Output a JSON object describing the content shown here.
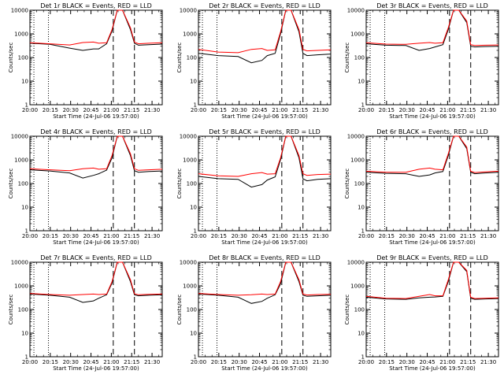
{
  "colors": {
    "events": "#000000",
    "lld": "#ff0000",
    "background": "#ffffff",
    "axes": "#000000"
  },
  "chart_data": [
    {
      "type": "line",
      "title": "Det 1r BLACK = Events, RED = LLD",
      "xlabel": "Start Time (24-Jul-06 19:57:00)",
      "ylabel": "Counts/sec",
      "yscale": "log",
      "ylim": [
        1,
        10000
      ],
      "xlim": [
        0,
        100
      ],
      "x_tick_labels": [
        "20:00",
        "20:15",
        "20:30",
        "20:45",
        "21:00",
        "21:15",
        "21:30"
      ],
      "y_tick_labels": [
        "1",
        "10",
        "100",
        "1000",
        "10000"
      ],
      "dotted_lines": [
        3,
        14
      ],
      "dashed_lines": [
        63,
        79
      ],
      "series": [
        {
          "name": "Events",
          "x": [
            0,
            15,
            30,
            40,
            48,
            52,
            58,
            62,
            66,
            70,
            76,
            79,
            82,
            90,
            100
          ],
          "y": [
            400,
            360,
            250,
            200,
            230,
            230,
            380,
            1300,
            10000,
            10000,
            1500,
            400,
            330,
            350,
            370
          ]
        },
        {
          "name": "LLD",
          "x": [
            0,
            15,
            30,
            40,
            48,
            52,
            58,
            62,
            66,
            70,
            76,
            79,
            82,
            90,
            100
          ],
          "y": [
            420,
            380,
            340,
            430,
            450,
            400,
            420,
            1500,
            10000,
            10000,
            1800,
            450,
            380,
            400,
            420
          ]
        }
      ]
    },
    {
      "type": "line",
      "title": "Det 2r BLACK = Events, RED = LLD",
      "xlabel": "Start Time (24-Jul-06 19:57:00)",
      "ylabel": "Counts/sec",
      "yscale": "log",
      "ylim": [
        1,
        10000
      ],
      "xlim": [
        0,
        100
      ],
      "x_tick_labels": [
        "20:00",
        "20:15",
        "20:30",
        "20:45",
        "21:00",
        "21:15",
        "21:30"
      ],
      "y_tick_labels": [
        "1",
        "10",
        "100",
        "1000",
        "10000"
      ],
      "dotted_lines": [
        3,
        14
      ],
      "dashed_lines": [
        63,
        79
      ],
      "series": [
        {
          "name": "Events",
          "x": [
            0,
            15,
            30,
            40,
            48,
            52,
            58,
            62,
            66,
            70,
            76,
            79,
            82,
            90,
            100
          ],
          "y": [
            150,
            120,
            110,
            60,
            75,
            120,
            150,
            1000,
            10000,
            10000,
            1200,
            150,
            120,
            130,
            140
          ]
        },
        {
          "name": "LLD",
          "x": [
            0,
            15,
            30,
            40,
            48,
            52,
            58,
            62,
            66,
            70,
            76,
            79,
            82,
            90,
            100
          ],
          "y": [
            220,
            170,
            160,
            220,
            240,
            200,
            210,
            1200,
            10000,
            10000,
            1500,
            220,
            190,
            200,
            210
          ]
        }
      ]
    },
    {
      "type": "line",
      "title": "Det 3r BLACK = Events, RED = LLD",
      "xlabel": "Start Time (24-Jul-06 19:57:00)",
      "ylabel": "Counts/sec",
      "yscale": "log",
      "ylim": [
        1,
        10000
      ],
      "xlim": [
        0,
        100
      ],
      "x_tick_labels": [
        "20:00",
        "20:15",
        "20:30",
        "20:45",
        "21:00",
        "21:15",
        "21:30"
      ],
      "y_tick_labels": [
        "1",
        "10",
        "100",
        "1000",
        "10000"
      ],
      "dotted_lines": [
        3,
        14
      ],
      "dashed_lines": [
        63,
        79
      ],
      "series": [
        {
          "name": "Events",
          "x": [
            0,
            15,
            30,
            40,
            48,
            52,
            58,
            62,
            66,
            70,
            76,
            79,
            82,
            90,
            100
          ],
          "y": [
            380,
            330,
            320,
            200,
            240,
            280,
            350,
            1500,
            10000,
            10000,
            3000,
            300,
            280,
            290,
            300
          ]
        },
        {
          "name": "LLD",
          "x": [
            0,
            15,
            30,
            40,
            48,
            52,
            58,
            62,
            66,
            70,
            76,
            79,
            82,
            90,
            100
          ],
          "y": [
            420,
            370,
            360,
            400,
            430,
            400,
            420,
            1800,
            10000,
            10000,
            3500,
            350,
            320,
            330,
            340
          ]
        }
      ]
    },
    {
      "type": "line",
      "title": "Det 4r BLACK = Events, RED = LLD",
      "xlabel": "Start Time (24-Jul-06 19:57:00)",
      "ylabel": "Counts/sec",
      "yscale": "log",
      "ylim": [
        1,
        10000
      ],
      "xlim": [
        0,
        100
      ],
      "x_tick_labels": [
        "20:00",
        "20:15",
        "20:30",
        "20:45",
        "21:00",
        "21:15",
        "21:30"
      ],
      "y_tick_labels": [
        "1",
        "10",
        "100",
        "1000",
        "10000"
      ],
      "dotted_lines": [
        3,
        14
      ],
      "dashed_lines": [
        63,
        79
      ],
      "series": [
        {
          "name": "Events",
          "x": [
            0,
            15,
            30,
            40,
            48,
            52,
            58,
            62,
            66,
            70,
            76,
            79,
            82,
            90,
            100
          ],
          "y": [
            380,
            340,
            280,
            170,
            220,
            260,
            370,
            1200,
            10000,
            10000,
            1500,
            350,
            300,
            320,
            340
          ]
        },
        {
          "name": "LLD",
          "x": [
            0,
            15,
            30,
            40,
            48,
            52,
            58,
            62,
            66,
            70,
            76,
            79,
            82,
            90,
            100
          ],
          "y": [
            420,
            380,
            350,
            420,
            450,
            400,
            420,
            1500,
            10000,
            10000,
            1800,
            420,
            360,
            380,
            400
          ]
        }
      ]
    },
    {
      "type": "line",
      "title": "Det 5r BLACK = Events, RED = LLD",
      "xlabel": "Start Time (24-Jul-06 19:57:00)",
      "ylabel": "Counts/sec",
      "yscale": "log",
      "ylim": [
        1,
        10000
      ],
      "xlim": [
        0,
        100
      ],
      "x_tick_labels": [
        "20:00",
        "20:15",
        "20:30",
        "20:45",
        "21:00",
        "21:15",
        "21:30"
      ],
      "y_tick_labels": [
        "1",
        "10",
        "100",
        "1000",
        "10000"
      ],
      "dotted_lines": [
        3,
        14
      ],
      "dashed_lines": [
        63,
        79
      ],
      "series": [
        {
          "name": "Events",
          "x": [
            0,
            15,
            30,
            40,
            48,
            52,
            58,
            62,
            66,
            70,
            76,
            79,
            82,
            90,
            100
          ],
          "y": [
            200,
            160,
            150,
            70,
            90,
            140,
            190,
            1000,
            10000,
            10000,
            1200,
            160,
            130,
            150,
            160
          ]
        },
        {
          "name": "LLD",
          "x": [
            0,
            15,
            30,
            40,
            48,
            52,
            58,
            62,
            66,
            70,
            76,
            79,
            82,
            90,
            100
          ],
          "y": [
            260,
            210,
            200,
            260,
            290,
            250,
            260,
            1200,
            10000,
            10000,
            1500,
            260,
            220,
            240,
            250
          ]
        }
      ]
    },
    {
      "type": "line",
      "title": "Det 6r BLACK = Events, RED = LLD",
      "xlabel": "Start Time (24-Jul-06 19:57:00)",
      "ylabel": "Counts/sec",
      "yscale": "log",
      "ylim": [
        1,
        10000
      ],
      "xlim": [
        0,
        100
      ],
      "x_tick_labels": [
        "20:00",
        "20:15",
        "20:30",
        "20:45",
        "21:00",
        "21:15",
        "21:30"
      ],
      "y_tick_labels": [
        "1",
        "10",
        "100",
        "1000",
        "10000"
      ],
      "dotted_lines": [
        3,
        14
      ],
      "dashed_lines": [
        63,
        79
      ],
      "series": [
        {
          "name": "Events",
          "x": [
            0,
            15,
            30,
            40,
            48,
            52,
            58,
            62,
            66,
            70,
            76,
            79,
            82,
            90,
            100
          ],
          "y": [
            300,
            270,
            260,
            200,
            230,
            280,
            320,
            1500,
            10000,
            10000,
            3000,
            300,
            260,
            280,
            300
          ]
        },
        {
          "name": "LLD",
          "x": [
            0,
            15,
            30,
            40,
            48,
            52,
            58,
            62,
            66,
            70,
            76,
            79,
            82,
            90,
            100
          ],
          "y": [
            330,
            300,
            300,
            400,
            450,
            400,
            380,
            1800,
            10000,
            10000,
            3500,
            330,
            290,
            310,
            330
          ]
        }
      ]
    },
    {
      "type": "line",
      "title": "Det 7r BLACK = Events, RED = LLD",
      "xlabel": "Start Time (24-Jul-06 19:57:00)",
      "ylabel": "Counts/sec",
      "yscale": "log",
      "ylim": [
        1,
        10000
      ],
      "xlim": [
        0,
        100
      ],
      "x_tick_labels": [
        "20:00",
        "20:15",
        "20:30",
        "20:45",
        "21:00",
        "21:15",
        "21:30"
      ],
      "y_tick_labels": [
        "1",
        "10",
        "100",
        "1000",
        "10000"
      ],
      "dotted_lines": [
        3,
        14
      ],
      "dashed_lines": [
        63,
        79
      ],
      "series": [
        {
          "name": "Events",
          "x": [
            0,
            15,
            30,
            40,
            48,
            52,
            58,
            62,
            66,
            70,
            76,
            79,
            82,
            90,
            100
          ],
          "y": [
            450,
            400,
            330,
            200,
            230,
            300,
            420,
            1300,
            10000,
            10000,
            1500,
            420,
            380,
            400,
            420
          ]
        },
        {
          "name": "LLD",
          "x": [
            0,
            15,
            30,
            40,
            48,
            52,
            58,
            62,
            66,
            70,
            76,
            79,
            82,
            90,
            100
          ],
          "y": [
            480,
            430,
            400,
            430,
            450,
            430,
            450,
            1500,
            10000,
            10000,
            1800,
            460,
            420,
            440,
            450
          ]
        }
      ]
    },
    {
      "type": "line",
      "title": "Det 8r BLACK = Events, RED = LLD",
      "xlabel": "Start Time (24-Jul-06 19:57:00)",
      "ylabel": "Counts/sec",
      "yscale": "log",
      "ylim": [
        1,
        10000
      ],
      "xlim": [
        0,
        100
      ],
      "x_tick_labels": [
        "20:00",
        "20:15",
        "20:30",
        "20:45",
        "21:00",
        "21:15",
        "21:30"
      ],
      "y_tick_labels": [
        "1",
        "10",
        "100",
        "1000",
        "10000"
      ],
      "dotted_lines": [
        3,
        14
      ],
      "dashed_lines": [
        63,
        79
      ],
      "series": [
        {
          "name": "Events",
          "x": [
            0,
            15,
            30,
            40,
            48,
            52,
            58,
            62,
            66,
            70,
            76,
            79,
            82,
            90,
            100
          ],
          "y": [
            450,
            400,
            330,
            180,
            220,
            300,
            420,
            1200,
            10000,
            10000,
            1500,
            400,
            360,
            380,
            400
          ]
        },
        {
          "name": "LLD",
          "x": [
            0,
            15,
            30,
            40,
            48,
            52,
            58,
            62,
            66,
            70,
            76,
            79,
            82,
            90,
            100
          ],
          "y": [
            480,
            430,
            400,
            420,
            450,
            430,
            450,
            1500,
            10000,
            10000,
            1800,
            450,
            410,
            430,
            440
          ]
        }
      ]
    },
    {
      "type": "line",
      "title": "Det 9r BLACK = Events, RED = LLD",
      "xlabel": "Start Time (24-Jul-06 19:57:00)",
      "ylabel": "Counts/sec",
      "yscale": "log",
      "ylim": [
        1,
        10000
      ],
      "xlim": [
        0,
        100
      ],
      "x_tick_labels": [
        "20:00",
        "20:15",
        "20:30",
        "20:45",
        "21:00",
        "21:15",
        "21:30"
      ],
      "y_tick_labels": [
        "1",
        "10",
        "100",
        "1000",
        "10000"
      ],
      "dotted_lines": [
        3,
        14
      ],
      "dashed_lines": [
        63,
        79
      ],
      "series": [
        {
          "name": "Events",
          "x": [
            0,
            15,
            30,
            40,
            48,
            52,
            58,
            62,
            66,
            70,
            76,
            79,
            82,
            90,
            100
          ],
          "y": [
            330,
            280,
            270,
            310,
            330,
            340,
            360,
            1500,
            10000,
            10000,
            4000,
            300,
            270,
            280,
            290
          ]
        },
        {
          "name": "LLD",
          "x": [
            0,
            15,
            30,
            40,
            48,
            52,
            58,
            62,
            66,
            70,
            76,
            79,
            82,
            90,
            100
          ],
          "y": [
            360,
            300,
            290,
            360,
            430,
            380,
            380,
            1800,
            10000,
            10000,
            4500,
            330,
            290,
            300,
            310
          ]
        }
      ]
    }
  ]
}
